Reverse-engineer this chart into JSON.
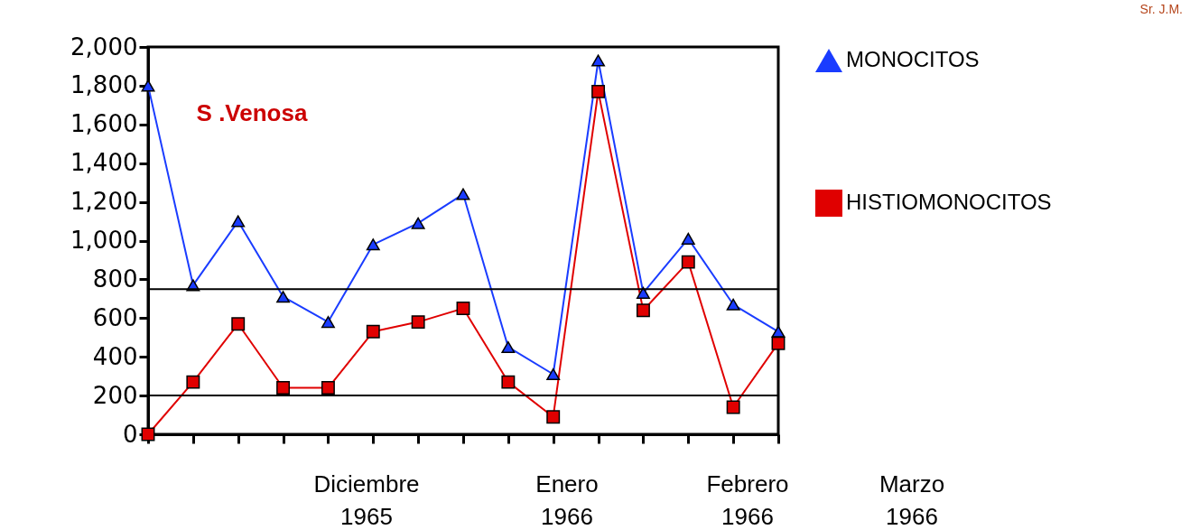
{
  "chart_data": {
    "type": "line",
    "title": "S .Venosa",
    "categories": [
      null,
      null,
      null,
      null,
      null,
      null,
      null,
      null,
      null,
      null,
      null,
      null,
      null,
      null,
      null
    ],
    "series": [
      {
        "name": "MONOCITOS",
        "color": "#1a3cff",
        "marker": "triangle",
        "values": [
          1800,
          770,
          1100,
          710,
          580,
          980,
          1090,
          1240,
          450,
          310,
          1930,
          730,
          1010,
          670,
          530
        ]
      },
      {
        "name": "HISTIOMONOCITOS",
        "color": "#e00000",
        "marker": "square",
        "values": [
          0,
          270,
          570,
          240,
          240,
          530,
          580,
          650,
          270,
          90,
          1770,
          640,
          890,
          140,
          470
        ]
      }
    ],
    "ylim": [
      0,
      2000
    ],
    "yticks": [
      0,
      200,
      400,
      600,
      800,
      {
        "value": 1000,
        "label": "1,000"
      },
      {
        "value": 1200,
        "label": "1,200"
      },
      {
        "value": 1400,
        "label": "1,400"
      },
      {
        "value": 1600,
        "label": "1,600"
      },
      {
        "value": 1800,
        "label": "1,800"
      },
      {
        "value": 2000,
        "label": "2,000"
      }
    ],
    "ref_lines": [
      {
        "axis": "y",
        "value": 750
      },
      {
        "axis": "y",
        "value": 200
      }
    ],
    "tick_labels": "y",
    "grid": false,
    "legend": "right",
    "annotations": [
      "Diciembre 1965",
      "Enero 1966",
      "Febrero 1966",
      "Marzo 1966",
      "Sr. J.M."
    ]
  }
}
